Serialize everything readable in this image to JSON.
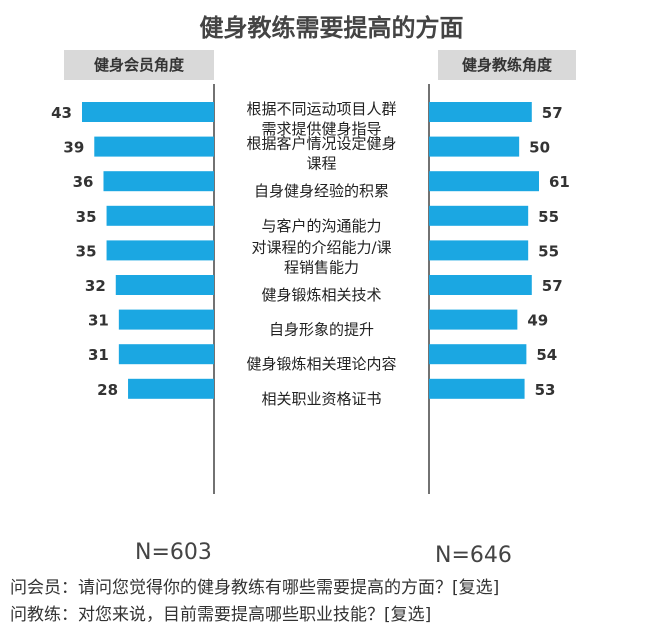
{
  "chart_data": {
    "type": "bar",
    "title": "健身教练需要提高的方面",
    "left_header": "健身会员角度",
    "right_header": "健身教练角度",
    "categories": [
      [
        "根据不同运动项目人群",
        "需求提供健身指导"
      ],
      [
        "根据客户情况设定健身",
        "课程"
      ],
      [
        "自身健身经验的积累"
      ],
      [
        "与客户的沟通能力"
      ],
      [
        "对课程的介绍能力/课",
        "程销售能力"
      ],
      [
        "健身锻炼相关技术"
      ],
      [
        "自身形象的提升"
      ],
      [
        "健身锻炼相关理论内容"
      ],
      [
        "相关职业资格证书"
      ]
    ],
    "series": [
      {
        "name": "健身会员角度",
        "values": [
          43,
          39,
          36,
          35,
          35,
          32,
          31,
          31,
          28
        ]
      },
      {
        "name": "健身教练角度",
        "values": [
          57,
          50,
          61,
          55,
          55,
          57,
          49,
          54,
          53
        ]
      }
    ],
    "bar_color": "#1ba7e2"
  },
  "footer": {
    "n_left": "N=603",
    "n_right": "N=646",
    "q_member": "问会员：请问您觉得你的健身教练有哪些需要提高的方面？[复选]",
    "q_coach": "问教练：对您来说，目前需要提高哪些职业技能？[复选]"
  }
}
